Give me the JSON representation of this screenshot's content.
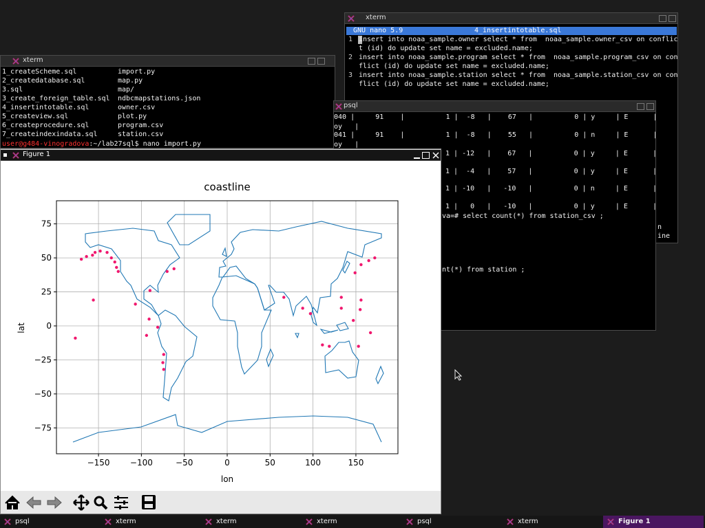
{
  "nano": {
    "window_title": "xterm",
    "app": "GNU nano 5.9",
    "file": "4_insertintotable.sql",
    "lines": [
      {
        "number": "1",
        "text": "insert into noaa_sample.owner select * from  noaa_sample.owner_csv on conflic"
      },
      {
        "text": "t (id) do update set name = excluded.name;"
      },
      {
        "number": "2",
        "text": "insert into noaa_sample.program select * from  noaa_sample.program_csv on con"
      },
      {
        "text": "flict (id) do update set name = excluded.name;"
      },
      {
        "number": "3",
        "text": "insert into noaa_sample.station select * from  noaa_sample.station_csv on con"
      },
      {
        "text": "flict (id) do update set name = excluded.name;"
      }
    ],
    "clipped_help": [
      "n",
      "ine"
    ]
  },
  "psql": {
    "window_title": "psql",
    "lines": [
      "040 |     91    |          1 |  -8   |    67   |          0 | y     | E      |",
      "oy   |",
      "041 |     91    |          1 |  -8   |    55   |          0 | n     | E      |",
      "oy   |",
      "1 | -12   |    67   |          0 | y     | E      |",
      "1 |  -4   |    57   |          0 | y     | E      |",
      "1 | -10   |   -10   |          0 | n     | E      |",
      "1 |   0   |   -10   |          0 | y     | E      |",
      "va=# select count(*) from station_csv ;",
      "nt(*) from station ;"
    ]
  },
  "shell": {
    "window_title": "xterm",
    "listing": [
      [
        "1_createScheme.sql",
        "import.py"
      ],
      [
        "2_createdatabase.sql",
        "map.py"
      ],
      [
        "3.sql",
        "map/"
      ],
      [
        "3_create_foreign_table.sql",
        "ndbcmapstations.json"
      ],
      [
        "4_insertintotable.sql",
        "owner.csv"
      ],
      [
        "5_createview.sql",
        "plot.py"
      ],
      [
        "6_createprocedure.sql",
        "program.csv"
      ],
      [
        "7_createindexindata.sql",
        "station.csv"
      ]
    ],
    "prompt_user": "user@g484-vinogradova",
    "prompt_rest": ":~/lab27sql$ nano import.py"
  },
  "figure": {
    "window_title": "Figure 1"
  },
  "taskbar": [
    "psql",
    "xterm",
    "xterm",
    "xterm",
    "psql",
    "xterm",
    "Figure 1"
  ],
  "chart_data": {
    "type": "scatter",
    "title": "coastline",
    "x_label": "lon",
    "y_label": "lat",
    "x": [
      -177,
      -170,
      -164,
      -157,
      -154,
      -148,
      -140,
      -135,
      -131,
      -129,
      -127,
      -156,
      -107,
      -90,
      -91,
      -94,
      -81,
      -74,
      -75,
      -74,
      -70,
      -62,
      66,
      88,
      97,
      111,
      119,
      133,
      133,
      147,
      153,
      167,
      156,
      155,
      149,
      156,
      165,
      172
    ],
    "values": [
      -9,
      49,
      51,
      52,
      54,
      55,
      54,
      50,
      47,
      43,
      40,
      19,
      16,
      26,
      5,
      -7,
      -1,
      -21,
      -27,
      -32,
      40,
      42,
      21,
      13,
      9,
      -14,
      -15,
      21,
      13,
      4,
      -15,
      -5,
      19,
      12,
      39,
      45,
      48,
      50
    ],
    "color": "#f0186e",
    "xlim": [
      -199,
      199
    ],
    "ylim": [
      -94,
      92
    ],
    "xticks": [
      {
        "value": -150,
        "label": "−150"
      },
      {
        "value": -100,
        "label": "−100"
      },
      {
        "value": -50,
        "label": "−50"
      },
      0,
      50,
      100,
      150
    ],
    "yticks": [
      {
        "value": -75,
        "label": "−75"
      },
      {
        "value": -50,
        "label": "−50"
      },
      {
        "value": -25,
        "label": "−25"
      },
      0,
      25,
      50,
      75
    ],
    "grid": true
  }
}
